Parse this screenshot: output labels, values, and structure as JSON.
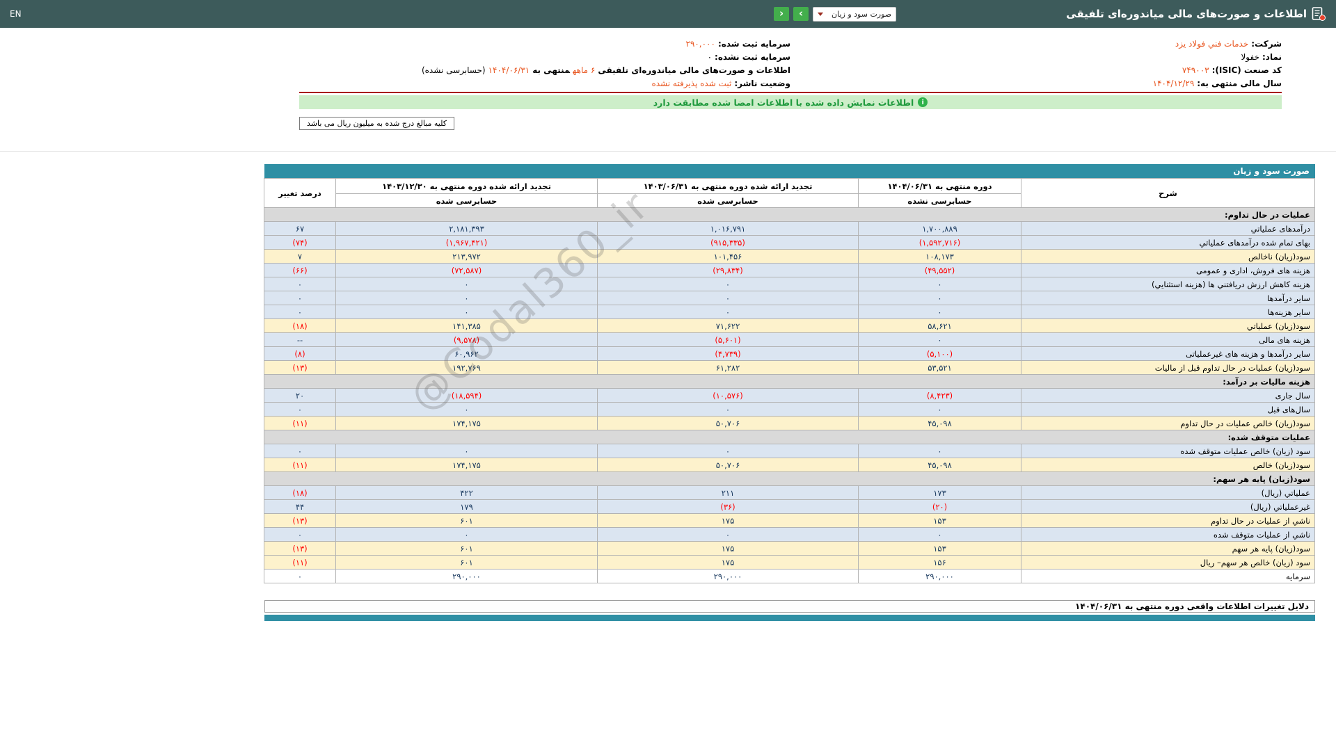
{
  "topbar": {
    "title": "اطلاعات و صورت‌های مالی میاندوره‌ای تلفیقی",
    "select_value": "صورت سود و زیان",
    "nav_right_icon": "›",
    "nav_left_icon": "‹",
    "lang": "EN"
  },
  "company_info": {
    "right_rows": [
      {
        "parts": [
          {
            "t": "شرکت:",
            "cls": "label"
          },
          {
            "t": "خدمات فني فولاد يزد",
            "cls": "accent"
          }
        ]
      },
      {
        "parts": [
          {
            "t": "نماد:",
            "cls": "label"
          },
          {
            "t": "خفولا",
            "cls": "plain"
          }
        ]
      },
      {
        "parts": [
          {
            "t": "کد صنعت (ISIC):",
            "cls": "label"
          },
          {
            "t": "۷۴۹۰۰۳",
            "cls": "accent"
          }
        ]
      },
      {
        "parts": [
          {
            "t": "سال مالی منتهی به:",
            "cls": "label"
          },
          {
            "t": "۱۴۰۴/۱۲/۲۹",
            "cls": "accent"
          }
        ]
      }
    ],
    "left_rows": [
      {
        "parts": [
          {
            "t": "سرمایه ثبت شده:",
            "cls": "label"
          },
          {
            "t": "۲۹۰,۰۰۰",
            "cls": "accent"
          }
        ]
      },
      {
        "parts": [
          {
            "t": "سرمایه ثبت نشده:",
            "cls": "label"
          },
          {
            "t": "۰",
            "cls": "plain"
          }
        ]
      },
      {
        "parts": [
          {
            "t": "اطلاعات و صورت‌های مالی میاندوره‌ای تلفیقی",
            "cls": "label"
          },
          {
            "t": "۶ ماهه",
            "cls": "accent"
          },
          {
            "t": "منتهی به",
            "cls": "label"
          },
          {
            "t": "۱۴۰۴/۰۶/۳۱",
            "cls": "accent"
          },
          {
            "t": "(حسابرسی نشده)",
            "cls": "plain"
          }
        ]
      },
      {
        "parts": [
          {
            "t": "وضعیت ناشر:",
            "cls": "label"
          },
          {
            "t": "ثبت شده پذیرفته نشده",
            "cls": "accent"
          }
        ]
      }
    ]
  },
  "banner": {
    "icon": "i",
    "text": "اطلاعات نمایش داده شده با اطلاعات امضا شده مطابقت دارد"
  },
  "note": "کلیه مبالغ درج شده به میلیون ریال می باشد",
  "statement_table": {
    "title": "صورت سود و زیان",
    "columns": {
      "desc": "شرح",
      "c1": {
        "title": "دوره منتهی به ۱۴۰۴/۰۶/۳۱",
        "sub": "حسابرسی نشده"
      },
      "c2": {
        "title": "تجدید ارائه شده دوره منتهی به ۱۴۰۳/۰۶/۳۱",
        "sub": "حسابرسی شده"
      },
      "c3": {
        "title": "تجدید ارائه شده دوره منتهی به ۱۴۰۳/۱۲/۳۰",
        "sub": "حسابرسی شده"
      },
      "pct": "درصد تغییر"
    },
    "rows": [
      {
        "type": "section",
        "label": "عملیات در حال تداوم:"
      },
      {
        "type": "data",
        "style": "blue",
        "label": "درآمدهای عملیاتي",
        "v1": "۱,۷۰۰,۸۸۹",
        "v2": "۱,۰۱۶,۷۹۱",
        "v3": "۲,۱۸۱,۳۹۳",
        "pct": "۶۷"
      },
      {
        "type": "data",
        "style": "blue",
        "label": "بهای تمام شده درآمدهای عملیاتي",
        "v1": "(۱,۵۹۲,۷۱۶)",
        "v2": "(۹۱۵,۳۳۵)",
        "v3": "(۱,۹۶۷,۴۲۱)",
        "pct": "(۷۴)"
      },
      {
        "type": "data",
        "style": "yellow",
        "label": "سود(زیان) ناخالص",
        "v1": "۱۰۸,۱۷۳",
        "v2": "۱۰۱,۴۵۶",
        "v3": "۲۱۳,۹۷۲",
        "pct": "۷"
      },
      {
        "type": "data",
        "style": "blue",
        "label": "هزینه های فروش، اداری و عمومی",
        "v1": "(۴۹,۵۵۲)",
        "v2": "(۲۹,۸۳۴)",
        "v3": "(۷۲,۵۸۷)",
        "pct": "(۶۶)"
      },
      {
        "type": "data",
        "style": "blue",
        "label": "هزینه کاهش ارزش دریافتني ها (هزینه استثنایي)",
        "v1": "۰",
        "v2": "۰",
        "v3": "۰",
        "pct": "۰"
      },
      {
        "type": "data",
        "style": "blue",
        "label": "سایر درآمدها",
        "v1": "۰",
        "v2": "۰",
        "v3": "۰",
        "pct": "۰"
      },
      {
        "type": "data",
        "style": "blue",
        "label": "سایر هزینه‌ها",
        "v1": "۰",
        "v2": "۰",
        "v3": "۰",
        "pct": "۰"
      },
      {
        "type": "data",
        "style": "yellow",
        "label": "سود(زیان) عملیاتي",
        "v1": "۵۸,۶۲۱",
        "v2": "۷۱,۶۲۲",
        "v3": "۱۴۱,۳۸۵",
        "pct": "(۱۸)"
      },
      {
        "type": "data",
        "style": "blue",
        "label": "هزینه های مالی",
        "v1": "۰",
        "v2": "(۵,۶۰۱)",
        "v3": "(۹,۵۷۸)",
        "pct": "--"
      },
      {
        "type": "data",
        "style": "blue",
        "label": "سایر درآمدها و هزینه های غیرعملیاتی",
        "v1": "(۵,۱۰۰)",
        "v2": "(۴,۷۳۹)",
        "v3": "۶۰,۹۶۲",
        "pct": "(۸)"
      },
      {
        "type": "data",
        "style": "yellow",
        "label": "سود(زیان) عملیات در حال تداوم قبل از مالیات",
        "v1": "۵۳,۵۲۱",
        "v2": "۶۱,۲۸۲",
        "v3": "۱۹۲,۷۶۹",
        "pct": "(۱۳)"
      },
      {
        "type": "section",
        "label": "هزینه مالیات بر درآمد:"
      },
      {
        "type": "data",
        "style": "blue",
        "label": "سال جاری",
        "v1": "(۸,۴۲۳)",
        "v2": "(۱۰,۵۷۶)",
        "v3": "(۱۸,۵۹۴)",
        "pct": "۲۰"
      },
      {
        "type": "data",
        "style": "blue",
        "label": "سال‌های قبل",
        "v1": "۰",
        "v2": "۰",
        "v3": "۰",
        "pct": "۰"
      },
      {
        "type": "data",
        "style": "yellow",
        "label": "سود(زیان) خالص عملیات در حال تداوم",
        "v1": "۴۵,۰۹۸",
        "v2": "۵۰,۷۰۶",
        "v3": "۱۷۴,۱۷۵",
        "pct": "(۱۱)"
      },
      {
        "type": "section",
        "label": "عملیات متوقف شده:"
      },
      {
        "type": "data",
        "style": "blue",
        "label": "سود (زیان) خالص عملیات متوقف شده",
        "v1": "۰",
        "v2": "۰",
        "v3": "۰",
        "pct": "۰"
      },
      {
        "type": "data",
        "style": "yellow",
        "label": "سود(زیان) خالص",
        "v1": "۴۵,۰۹۸",
        "v2": "۵۰,۷۰۶",
        "v3": "۱۷۴,۱۷۵",
        "pct": "(۱۱)"
      },
      {
        "type": "section",
        "label": "سود(زیان) پایه هر سهم:"
      },
      {
        "type": "data",
        "style": "blue",
        "label": "عملیاتي (ریال)",
        "v1": "۱۷۳",
        "v2": "۲۱۱",
        "v3": "۴۲۲",
        "pct": "(۱۸)"
      },
      {
        "type": "data",
        "style": "blue",
        "label": "غیرعملیاتي (ریال)",
        "v1": "(۲۰)",
        "v2": "(۳۶)",
        "v3": "۱۷۹",
        "pct": "۴۴"
      },
      {
        "type": "data",
        "style": "yellow",
        "label": "ناشي از عملیات در حال تداوم",
        "v1": "۱۵۳",
        "v2": "۱۷۵",
        "v3": "۶۰۱",
        "pct": "(۱۳)"
      },
      {
        "type": "data",
        "style": "blue",
        "label": "ناشي از عملیات متوقف شده",
        "v1": "۰",
        "v2": "۰",
        "v3": "۰",
        "pct": "۰"
      },
      {
        "type": "data",
        "style": "yellow",
        "label": "سود(زیان) پایه هر سهم",
        "v1": "۱۵۳",
        "v2": "۱۷۵",
        "v3": "۶۰۱",
        "pct": "(۱۳)"
      },
      {
        "type": "data",
        "style": "yellow",
        "label": "سود (زیان) خالص هر سهم– ریال",
        "v1": "۱۵۶",
        "v2": "۱۷۵",
        "v3": "۶۰۱",
        "pct": "(۱۱)"
      },
      {
        "type": "data",
        "style": "white",
        "label": "سرمایه",
        "v1": "۲۹۰,۰۰۰",
        "v2": "۲۹۰,۰۰۰",
        "v3": "۲۹۰,۰۰۰",
        "pct": "۰"
      }
    ]
  },
  "footer": {
    "reasons_title": "دلایل تغییرات اطلاعات واقعی دوره منتهی به ۱۴۰۴/۰۶/۳۱"
  },
  "watermark": "@Codal360_ir",
  "colors": {
    "topbar": "#3d5b5b",
    "teal_header": "#2f8fa4",
    "accent_value": "#e8541e",
    "negative": "#ff0000",
    "positive": "#17375d",
    "row_blue": "#dbe5f1",
    "row_yellow": "#fdf2cc",
    "section_gray": "#d9d9d9",
    "banner_green_bg": "#cdeec9",
    "banner_green_text": "#1f9a3d",
    "nav_button_green": "#43ae4c"
  }
}
